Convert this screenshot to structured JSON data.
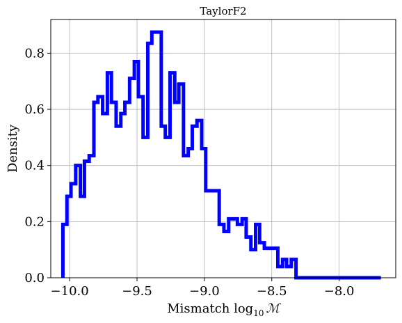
{
  "chart_data": {
    "type": "histogram",
    "title": "TaylorF2",
    "xlabel": {
      "prefix": "Mismatch log",
      "subscript": "10",
      "symbol": "ℳ"
    },
    "ylabel": "Density",
    "xlim": [
      -10.14,
      -7.58
    ],
    "ylim": [
      0.0,
      0.92
    ],
    "grid": true,
    "line_color": "#0000ff",
    "x_ticks": [
      -10.0,
      -9.5,
      -9.0,
      -8.5,
      -8.0
    ],
    "x_tick_labels": [
      "−10.0",
      "−9.5",
      "−9.0",
      "−8.5",
      "−8.0"
    ],
    "y_ticks": [
      0.0,
      0.2,
      0.4,
      0.6,
      0.8
    ],
    "y_tick_labels": [
      "0.0",
      "0.2",
      "0.4",
      "0.6",
      "0.8"
    ],
    "bin_edges": [
      -10.05,
      -10.02,
      -9.99,
      -9.955,
      -9.92,
      -9.89,
      -9.855,
      -9.82,
      -9.79,
      -9.755,
      -9.72,
      -9.69,
      -9.655,
      -9.62,
      -9.59,
      -9.555,
      -9.52,
      -9.49,
      -9.455,
      -9.42,
      -9.39,
      -9.355,
      -9.32,
      -9.29,
      -9.255,
      -9.22,
      -9.19,
      -9.155,
      -9.12,
      -9.09,
      -9.055,
      -9.02,
      -8.99,
      -8.955,
      -8.92,
      -8.89,
      -8.855,
      -8.82,
      -8.79,
      -8.755,
      -8.72,
      -8.69,
      -8.655,
      -8.62,
      -8.59,
      -8.555,
      -8.52,
      -8.49,
      -8.455,
      -8.42,
      -8.39,
      -8.355,
      -8.32,
      -8.29,
      -8.255,
      -8.22,
      -8.19,
      -8.155,
      -8.12,
      -8.09,
      -8.055,
      -8.02,
      -7.99,
      -7.955,
      -7.92,
      -7.89,
      -7.855,
      -7.82,
      -7.79,
      -7.755,
      -7.72,
      -7.69
    ],
    "densities": [
      0.19,
      0.29,
      0.335,
      0.4,
      0.29,
      0.415,
      0.435,
      0.625,
      0.645,
      0.585,
      0.73,
      0.625,
      0.54,
      0.585,
      0.625,
      0.71,
      0.77,
      0.645,
      0.5,
      0.835,
      0.875,
      0.875,
      0.54,
      0.5,
      0.73,
      0.625,
      0.69,
      0.435,
      0.46,
      0.54,
      0.56,
      0.46,
      0.31,
      0.31,
      0.31,
      0.19,
      0.165,
      0.21,
      0.21,
      0.19,
      0.21,
      0.145,
      0.1,
      0.19,
      0.125,
      0.105,
      0.105,
      0.105,
      0.04,
      0.065,
      0.04,
      0.065,
      0.0,
      0.0,
      0.0,
      0.0,
      0.0,
      0.0,
      0.0,
      0.0,
      0.0,
      0.0,
      0.0,
      0.0,
      0.0,
      0.0,
      0.0,
      0.0,
      0.0,
      0.0,
      0.0
    ]
  }
}
